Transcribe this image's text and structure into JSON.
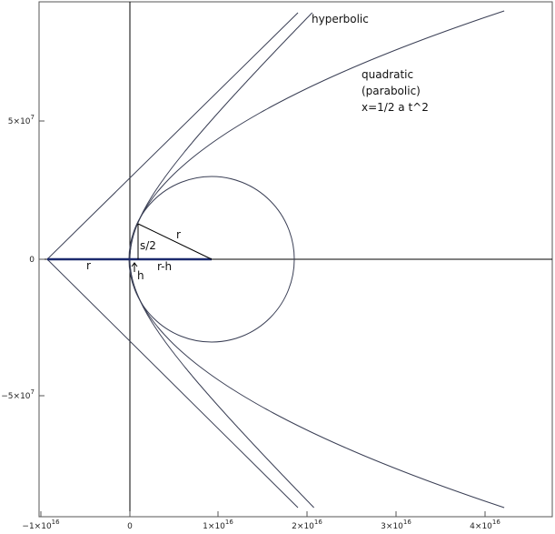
{
  "axes": {
    "x_ticks": [
      {
        "base": "−1×10",
        "exp": "16"
      },
      {
        "base": "0"
      },
      {
        "base": "1×10",
        "exp": "16"
      },
      {
        "base": "2×10",
        "exp": "16"
      },
      {
        "base": "3×10",
        "exp": "16"
      },
      {
        "base": "4×10",
        "exp": "16"
      }
    ],
    "y_ticks": [
      {
        "base": "5×10",
        "exp": "7"
      },
      {
        "base": "0"
      },
      {
        "base": "−5×10",
        "exp": "7"
      }
    ]
  },
  "annotations": {
    "hyperbolic": "hyperbolic",
    "quadratic": [
      "quadratic",
      "(parabolic)",
      "x=1/2 a t^2"
    ],
    "half_chord": "s/2",
    "radius": "r",
    "offset_r": "r",
    "h": "h",
    "r_minus_h": "r-h"
  }
}
